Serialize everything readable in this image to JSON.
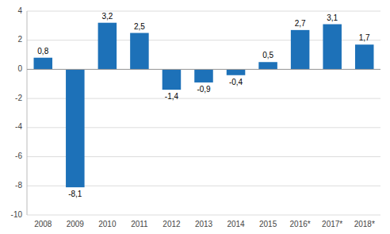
{
  "chart_data": {
    "type": "bar",
    "categories": [
      "2008",
      "2009",
      "2010",
      "2011",
      "2012",
      "2013",
      "2014",
      "2015",
      "2016*",
      "2017*",
      "2018*"
    ],
    "values": [
      0.8,
      -8.1,
      3.2,
      2.5,
      -1.4,
      -0.9,
      -0.4,
      0.5,
      2.7,
      3.1,
      1.7
    ],
    "value_labels": [
      "0,8",
      "-8,1",
      "3,2",
      "2,5",
      "-1,4",
      "-0,9",
      "-0,4",
      "0,5",
      "2,7",
      "3,1",
      "1,7"
    ],
    "color": "#1d71b8",
    "ylim": [
      -10,
      4
    ],
    "yticks": [
      -10,
      -8,
      -6,
      -4,
      -2,
      0,
      2,
      4
    ],
    "grid": true,
    "data_labels": true
  }
}
